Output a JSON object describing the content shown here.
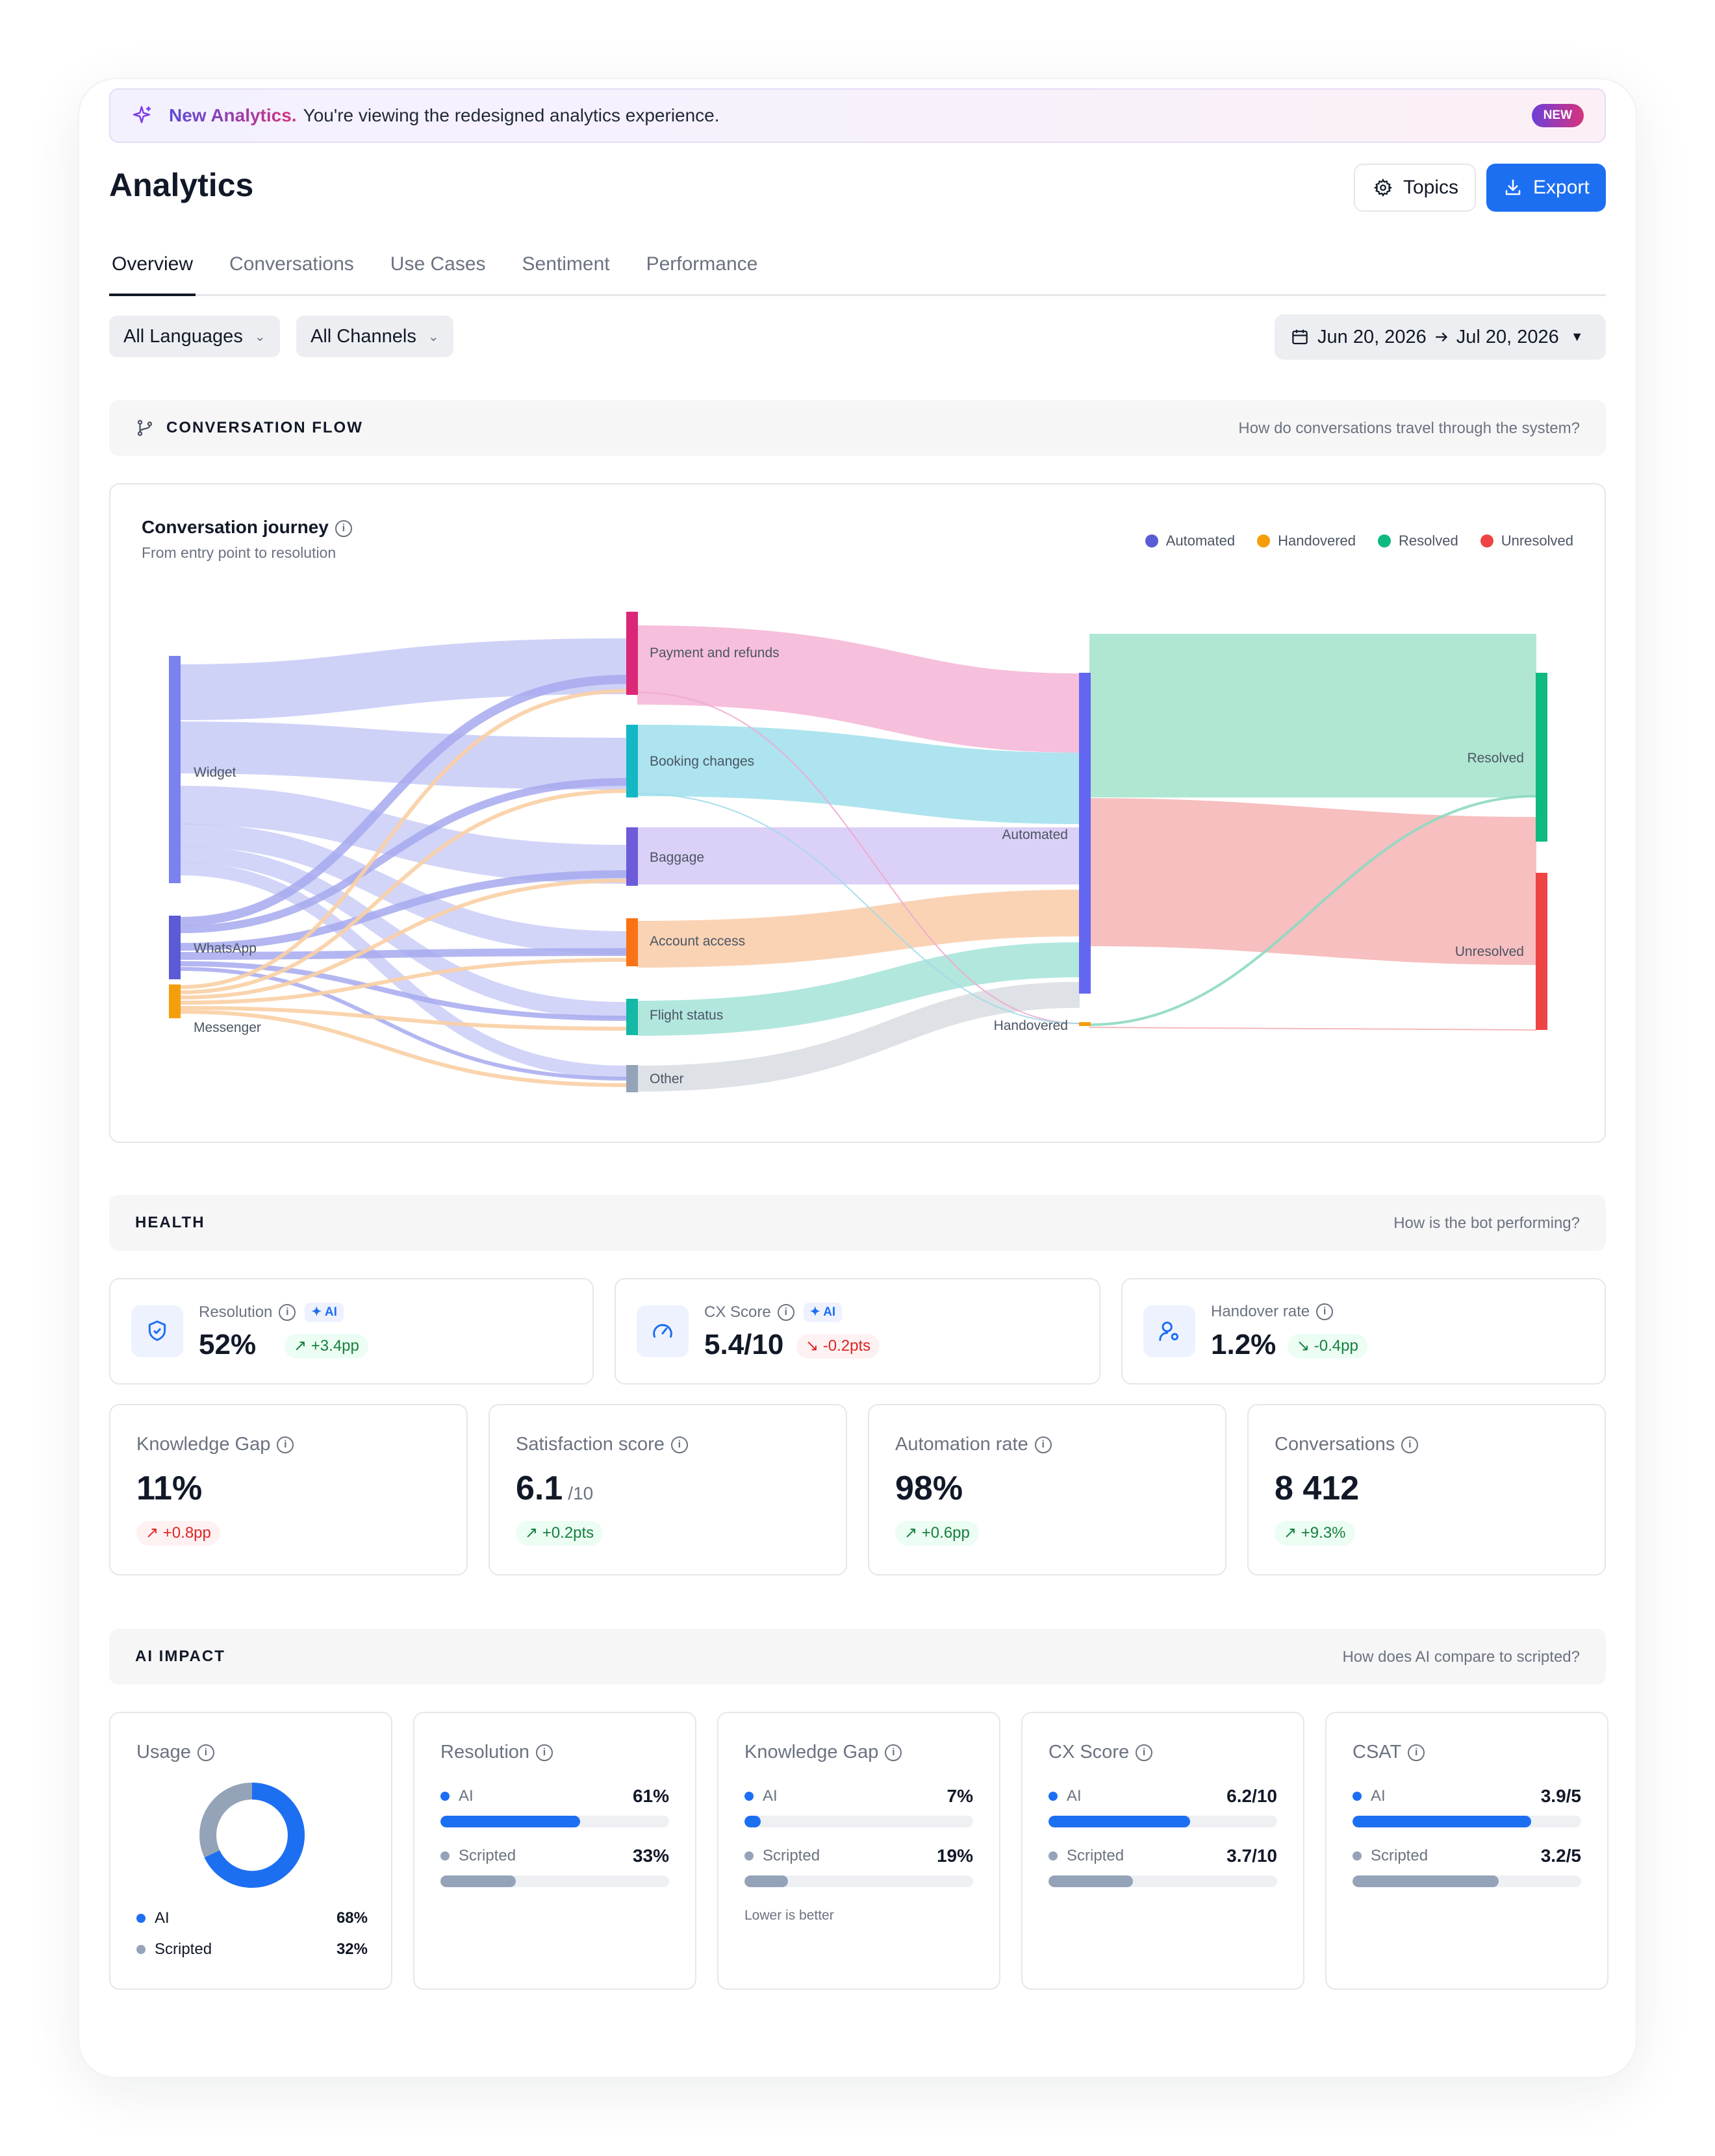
{
  "banner": {
    "strong": "New Analytics.",
    "text": "You're viewing the redesigned analytics experience.",
    "badge": "NEW"
  },
  "header": {
    "title": "Analytics",
    "topics_label": "Topics",
    "export_label": "Export"
  },
  "tabs": [
    {
      "label": "Overview",
      "active": true
    },
    {
      "label": "Conversations"
    },
    {
      "label": "Use Cases"
    },
    {
      "label": "Sentiment"
    },
    {
      "label": "Performance"
    }
  ],
  "filters": {
    "language": "All Languages",
    "channel": "All Channels",
    "date_from": "Jun 20, 2026",
    "date_to": "Jul 20, 2026"
  },
  "flow_section": {
    "label": "CONVERSATION FLOW",
    "question": "How do conversations travel through the system?"
  },
  "journey": {
    "title": "Conversation journey",
    "subtitle": "From entry point to resolution",
    "legend": [
      {
        "label": "Automated",
        "color": "#5b5bd6"
      },
      {
        "label": "Handovered",
        "color": "#f59e0b"
      },
      {
        "label": "Resolved",
        "color": "#10b981"
      },
      {
        "label": "Unresolved",
        "color": "#ef4444"
      }
    ],
    "nodes": {
      "sources": [
        "Widget",
        "WhatsApp",
        "Messenger"
      ],
      "topics": [
        "Payment and refunds",
        "Booking changes",
        "Baggage",
        "Account access",
        "Flight status",
        "Other"
      ],
      "stage": [
        "Automated",
        "Handovered"
      ],
      "outcome": [
        "Resolved",
        "Unresolved"
      ]
    }
  },
  "health_section": {
    "label": "HEALTH",
    "question": "How is the bot performing?"
  },
  "health": [
    {
      "label": "Resolution",
      "ai": "AI",
      "value": "52%",
      "delta": "+3.4pp",
      "trend": "up",
      "icon": "shield-check-icon"
    },
    {
      "label": "CX Score",
      "ai": "AI",
      "value": "5.4/10",
      "delta": "-0.2pts",
      "trend": "down",
      "icon": "gauge-icon"
    },
    {
      "label": "Handover rate",
      "value": "1.2%",
      "delta": "-0.4pp",
      "trend": "up",
      "icon": "user-gear-icon"
    }
  ],
  "metrics": [
    {
      "label": "Knowledge Gap",
      "value": "11%",
      "suffix": "",
      "delta": "+0.8pp",
      "trend": "down"
    },
    {
      "label": "Satisfaction score",
      "value": "6.1",
      "suffix": "/10",
      "delta": "+0.2pts",
      "trend": "up"
    },
    {
      "label": "Automation rate",
      "value": "98%",
      "suffix": "",
      "delta": "+0.6pp",
      "trend": "up"
    },
    {
      "label": "Conversations",
      "value": "8 412",
      "suffix": "",
      "delta": "+9.3%",
      "trend": "up"
    }
  ],
  "ai_section": {
    "label": "AI IMPACT",
    "question": "How does AI compare to scripted?"
  },
  "usage": {
    "label": "Usage",
    "ai_label": "AI",
    "ai_value": "68%",
    "ai_fraction": 0.68,
    "scripted_label": "Scripted",
    "scripted_value": "32%"
  },
  "comparisons": [
    {
      "label": "Resolution",
      "ai_label": "AI",
      "ai_value": "61%",
      "ai_fraction": 0.61,
      "scripted_label": "Scripted",
      "scripted_value": "33%",
      "scripted_fraction": 0.33,
      "note": ""
    },
    {
      "label": "Knowledge Gap",
      "ai_label": "AI",
      "ai_value": "7%",
      "ai_fraction": 0.07,
      "scripted_label": "Scripted",
      "scripted_value": "19%",
      "scripted_fraction": 0.19,
      "note": "Lower is better"
    },
    {
      "label": "CX Score",
      "ai_label": "AI",
      "ai_value": "6.2/10",
      "ai_fraction": 0.62,
      "scripted_label": "Scripted",
      "scripted_value": "3.7/10",
      "scripted_fraction": 0.37,
      "note": ""
    },
    {
      "label": "CSAT",
      "ai_label": "AI",
      "ai_value": "3.9/5",
      "ai_fraction": 0.78,
      "scripted_label": "Scripted",
      "scripted_value": "3.2/5",
      "scripted_fraction": 0.64,
      "note": ""
    }
  ],
  "colors": {
    "accent": "#1d6ff2",
    "scripted": "#94a3b8",
    "up": "#15803d",
    "down": "#dc2626"
  }
}
